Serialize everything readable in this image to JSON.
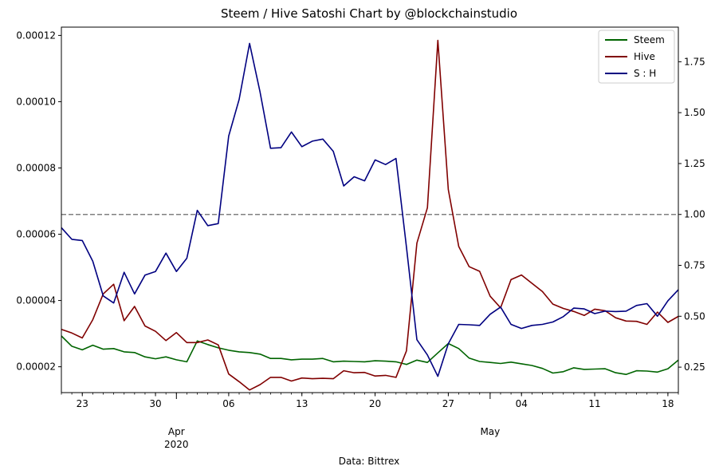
{
  "chart_data": {
    "type": "line",
    "title": "Steem / Hive Satoshi Chart by @blockchainstudio",
    "xlabel": "Data: Bittrex",
    "x_start": "2020-03-21",
    "x_end": "2020-05-19",
    "x_ticks": [
      {
        "date": "2020-03-23",
        "label": "23"
      },
      {
        "date": "2020-03-30",
        "label": "30"
      },
      {
        "date": "2020-04-06",
        "label": "06"
      },
      {
        "date": "2020-04-13",
        "label": "13"
      },
      {
        "date": "2020-04-20",
        "label": "20"
      },
      {
        "date": "2020-04-27",
        "label": "27"
      },
      {
        "date": "2020-05-04",
        "label": "04"
      },
      {
        "date": "2020-05-11",
        "label": "11"
      },
      {
        "date": "2020-05-18",
        "label": "18"
      }
    ],
    "x_month_labels": [
      {
        "date": "2020-04-01",
        "label": "Apr",
        "sub": "2020"
      },
      {
        "date": "2020-05-01",
        "label": "May",
        "sub": ""
      }
    ],
    "y_left": {
      "range": [
        1.22e-05,
        0.0001225
      ],
      "ticks": [
        "0.00002",
        "0.00004",
        "0.00006",
        "0.00008",
        "0.00010",
        "0.00012"
      ]
    },
    "y_right": {
      "range": [
        0.125,
        1.92
      ],
      "ticks": [
        "0.25",
        "0.50",
        "0.75",
        "1.00",
        "1.25",
        "1.50",
        "1.75"
      ]
    },
    "reference_line": {
      "axis": "right",
      "value": 1.0,
      "color": "#808080",
      "style": "dashed"
    },
    "legend": {
      "placement": "upper-right"
    },
    "series": [
      {
        "name": "Steem",
        "axis": "left",
        "color": "#006400",
        "values": [
          2.93e-05,
          2.62e-05,
          2.51e-05,
          2.65e-05,
          2.53e-05,
          2.55e-05,
          2.45e-05,
          2.43e-05,
          2.3e-05,
          2.24e-05,
          2.3e-05,
          2.21e-05,
          2.15e-05,
          2.78e-05,
          2.67e-05,
          2.57e-05,
          2.5e-05,
          2.45e-05,
          2.43e-05,
          2.38e-05,
          2.25e-05,
          2.25e-05,
          2.21e-05,
          2.23e-05,
          2.23e-05,
          2.25e-05,
          2.15e-05,
          2.17e-05,
          2.16e-05,
          2.15e-05,
          2.18e-05,
          2.17e-05,
          2.15e-05,
          2.07e-05,
          2.2e-05,
          2.13e-05,
          2.42e-05,
          2.7e-05,
          2.55e-05,
          2.26e-05,
          2.16e-05,
          2.13e-05,
          2.1e-05,
          2.14e-05,
          2.09e-05,
          2.04e-05,
          1.95e-05,
          1.81e-05,
          1.85e-05,
          1.97e-05,
          1.92e-05,
          1.93e-05,
          1.94e-05,
          1.82e-05,
          1.77e-05,
          1.88e-05,
          1.87e-05,
          1.84e-05,
          1.94e-05,
          2.2e-05
        ]
      },
      {
        "name": "Hive",
        "axis": "left",
        "color": "#800000",
        "values": [
          3.13e-05,
          3.02e-05,
          2.87e-05,
          3.42e-05,
          4.2e-05,
          4.49e-05,
          3.39e-05,
          3.82e-05,
          3.23e-05,
          3.07e-05,
          2.79e-05,
          3.03e-05,
          2.73e-05,
          2.73e-05,
          2.81e-05,
          2.66e-05,
          1.78e-05,
          1.55e-05,
          1.3e-05,
          1.46e-05,
          1.68e-05,
          1.68e-05,
          1.57e-05,
          1.66e-05,
          1.64e-05,
          1.65e-05,
          1.64e-05,
          1.88e-05,
          1.82e-05,
          1.83e-05,
          1.72e-05,
          1.74e-05,
          1.68e-05,
          2.48e-05,
          5.73e-05,
          6.8e-05,
          0.0001185,
          7.35e-05,
          5.63e-05,
          5.02e-05,
          4.88e-05,
          4.13e-05,
          3.78e-05,
          4.63e-05,
          4.77e-05,
          4.52e-05,
          4.27e-05,
          3.89e-05,
          3.76e-05,
          3.67e-05,
          3.55e-05,
          3.74e-05,
          3.69e-05,
          3.48e-05,
          3.38e-05,
          3.37e-05,
          3.28e-05,
          3.65e-05,
          3.34e-05,
          3.52e-05
        ]
      },
      {
        "name": "S : H",
        "axis": "right",
        "color": "#000080",
        "values": [
          0.935,
          0.878,
          0.872,
          0.77,
          0.6,
          0.565,
          0.716,
          0.61,
          0.702,
          0.72,
          0.81,
          0.72,
          0.785,
          1.02,
          0.945,
          0.955,
          1.385,
          1.565,
          1.84,
          1.6,
          1.325,
          1.328,
          1.405,
          1.333,
          1.36,
          1.37,
          1.31,
          1.14,
          1.185,
          1.165,
          1.268,
          1.245,
          1.275,
          0.84,
          0.385,
          0.31,
          0.205,
          0.365,
          0.46,
          0.458,
          0.455,
          0.51,
          0.545,
          0.46,
          0.44,
          0.455,
          0.46,
          0.472,
          0.498,
          0.54,
          0.536,
          0.513,
          0.525,
          0.523,
          0.525,
          0.553,
          0.562,
          0.5,
          0.576,
          0.63
        ]
      }
    ]
  }
}
